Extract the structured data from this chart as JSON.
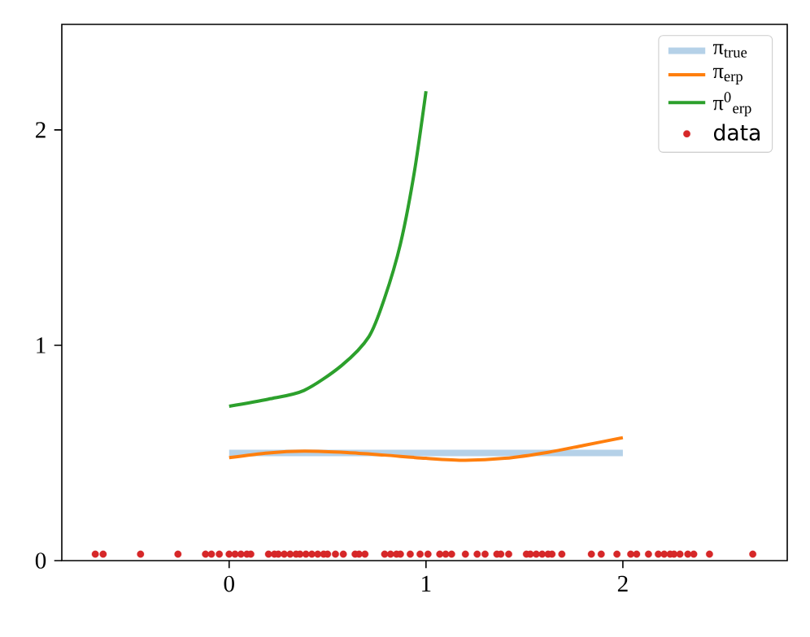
{
  "chart_data": {
    "type": "scatter",
    "xlim": [
      -0.85,
      2.835
    ],
    "ylim": [
      0,
      2.49
    ],
    "xticks": [
      0,
      1,
      2
    ],
    "yticks": [
      0,
      1,
      2
    ],
    "grid": false,
    "legend": "top right",
    "series": [
      {
        "name": "π$_{true}$",
        "type": "line",
        "color": "#b5d1e8",
        "x": [
          0,
          2
        ],
        "values": [
          0.5,
          0.5
        ]
      },
      {
        "name": "π$_{erp}$",
        "type": "line",
        "color": "#ff7f0e",
        "x": [
          0,
          0.2,
          0.38,
          0.6,
          0.79,
          1.0,
          1.2,
          1.4,
          1.62,
          1.8,
          2.0
        ],
        "values": [
          0.478,
          0.5,
          0.508,
          0.502,
          0.49,
          0.475,
          0.466,
          0.475,
          0.503,
          0.535,
          0.571
        ]
      },
      {
        "name": "π$^{0}$$_{erp}$",
        "type": "line",
        "color": "#2ca02c",
        "x": [
          0,
          0.2,
          0.38,
          0.57,
          0.71,
          0.79,
          0.87,
          0.94,
          1.0
        ],
        "values": [
          0.717,
          0.75,
          0.79,
          0.905,
          1.04,
          1.22,
          1.47,
          1.8,
          2.18
        ]
      },
      {
        "name": "data",
        "color": "#d62728",
        "x": [
          -0.68,
          -0.64,
          -0.45,
          -0.26,
          -0.12,
          -0.09,
          -0.05,
          0.0,
          0.03,
          0.06,
          0.09,
          0.11,
          0.2,
          0.23,
          0.25,
          0.28,
          0.31,
          0.34,
          0.36,
          0.39,
          0.42,
          0.45,
          0.48,
          0.5,
          0.54,
          0.58,
          0.64,
          0.66,
          0.69,
          0.79,
          0.82,
          0.85,
          0.87,
          0.92,
          0.97,
          1.01,
          1.07,
          1.1,
          1.13,
          1.2,
          1.26,
          1.3,
          1.36,
          1.38,
          1.42,
          1.51,
          1.53,
          1.56,
          1.59,
          1.62,
          1.64,
          1.69,
          1.84,
          1.89,
          1.97,
          2.04,
          2.07,
          2.13,
          2.18,
          2.21,
          2.24,
          2.26,
          2.29,
          2.33,
          2.36,
          2.44,
          2.66
        ],
        "values": [
          0.03,
          0.03,
          0.03,
          0.03,
          0.03,
          0.03,
          0.03,
          0.03,
          0.03,
          0.03,
          0.03,
          0.03,
          0.03,
          0.03,
          0.03,
          0.03,
          0.03,
          0.03,
          0.03,
          0.03,
          0.03,
          0.03,
          0.03,
          0.03,
          0.03,
          0.03,
          0.03,
          0.03,
          0.03,
          0.03,
          0.03,
          0.03,
          0.03,
          0.03,
          0.03,
          0.03,
          0.03,
          0.03,
          0.03,
          0.03,
          0.03,
          0.03,
          0.03,
          0.03,
          0.03,
          0.03,
          0.03,
          0.03,
          0.03,
          0.03,
          0.03,
          0.03,
          0.03,
          0.03,
          0.03,
          0.03,
          0.03,
          0.03,
          0.03,
          0.03,
          0.03,
          0.03,
          0.03,
          0.03,
          0.03,
          0.03,
          0.03
        ]
      }
    ]
  }
}
